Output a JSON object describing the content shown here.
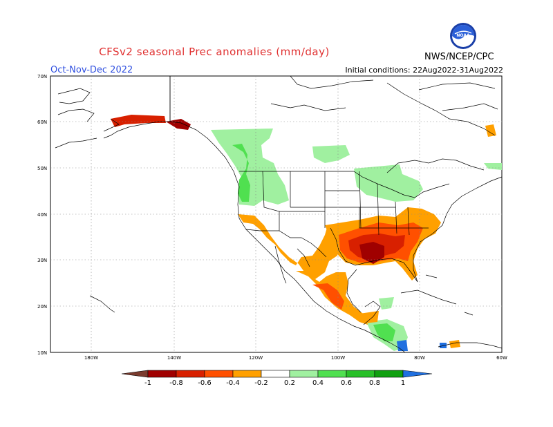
{
  "header": {
    "title": "CFSv2 seasonal Prec anomalies (mm/day)",
    "period": "Oct-Nov-Dec 2022",
    "initial_conditions": "Initial conditions: 22Aug2022-31Aug2022",
    "organization": "NWS/NCEP/CPC",
    "logo_text": "NOAA"
  },
  "axes": {
    "lat_labels": [
      "70N",
      "60N",
      "50N",
      "40N",
      "30N",
      "20N",
      "10N"
    ],
    "lon_labels": [
      "180W",
      "140W",
      "120W",
      "100W",
      "80W",
      "60W"
    ]
  },
  "colorbar": {
    "labels": [
      "-1",
      "-0.8",
      "-0.6",
      "-0.4",
      "-0.2",
      "0.2",
      "0.4",
      "0.6",
      "0.8",
      "1"
    ],
    "colors": {
      "lt_m1": "#7a3b2e",
      "m1_m08": "#a00000",
      "m08_m06": "#d82000",
      "m06_m04": "#ff5000",
      "m04_m02": "#ffa000",
      "m02_02": "#ffffff",
      "p02_04": "#a0f0a0",
      "p04_06": "#50e050",
      "p06_08": "#28c028",
      "p08_1": "#10a010",
      "gt_1": "#2070e0"
    }
  }
}
